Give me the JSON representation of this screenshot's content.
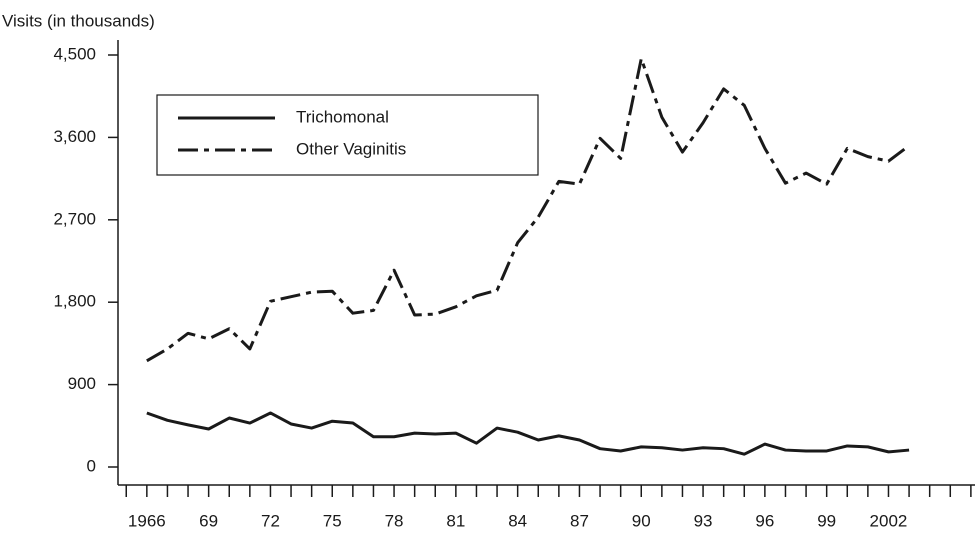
{
  "chart_data": {
    "type": "line",
    "y_label": "Visits (in thousands)",
    "x": [
      1966,
      1967,
      1968,
      1969,
      1970,
      1971,
      1972,
      1973,
      1974,
      1975,
      1976,
      1977,
      1978,
      1979,
      1980,
      1981,
      1982,
      1983,
      1984,
      1985,
      1986,
      1987,
      1988,
      1989,
      1990,
      1991,
      1992,
      1993,
      1994,
      1995,
      1996,
      1997,
      1998,
      1999,
      2000,
      2001,
      2002,
      2003
    ],
    "series": [
      {
        "name": "Trichomonal",
        "color": "#1a1a1a",
        "style": "solid",
        "values": [
          590,
          510,
          460,
          415,
          535,
          480,
          590,
          470,
          425,
          500,
          480,
          330,
          330,
          370,
          360,
          370,
          260,
          425,
          380,
          295,
          340,
          295,
          200,
          175,
          220,
          210,
          185,
          210,
          200,
          140,
          250,
          185,
          175,
          175,
          230,
          220,
          165,
          185
        ]
      },
      {
        "name": "Other Vaginitis",
        "color": "#1a1a1a",
        "style": "dashdot",
        "values": [
          1160,
          1290,
          1460,
          1400,
          1510,
          1290,
          1810,
          1860,
          1910,
          1920,
          1680,
          1710,
          2150,
          1660,
          1670,
          1750,
          1870,
          1930,
          2450,
          2730,
          3120,
          3090,
          3590,
          3370,
          4460,
          3820,
          3440,
          3760,
          4130,
          3950,
          3480,
          3100,
          3210,
          3090,
          3480,
          3390,
          3340,
          3510
        ]
      }
    ],
    "xlim": [
      1964.6,
      2006.2
    ],
    "xticks": [
      1966,
      {
        "value": 1969,
        "label": "69"
      },
      {
        "value": 1972,
        "label": "72"
      },
      {
        "value": 1975,
        "label": "75"
      },
      {
        "value": 1978,
        "label": "78"
      },
      {
        "value": 1981,
        "label": "81"
      },
      {
        "value": 1984,
        "label": "84"
      },
      {
        "value": 1987,
        "label": "87"
      },
      {
        "value": 1990,
        "label": "90"
      },
      {
        "value": 1993,
        "label": "93"
      },
      {
        "value": 1996,
        "label": "96"
      },
      {
        "value": 1999,
        "label": "99"
      },
      2002
    ],
    "xminorticks": [
      1965,
      1967,
      1968,
      1970,
      1971,
      1973,
      1974,
      1976,
      1977,
      1979,
      1980,
      1982,
      1983,
      1985,
      1986,
      1988,
      1989,
      1991,
      1992,
      1994,
      1995,
      1997,
      1998,
      2000,
      2001,
      2003,
      2004,
      2005,
      2006
    ],
    "ylim": [
      0,
      4500
    ],
    "yticks": [
      0,
      {
        "value": 900,
        "label": "900"
      },
      {
        "value": 1800,
        "label": "1,800"
      },
      {
        "value": 2700,
        "label": "2,700"
      },
      {
        "value": 3600,
        "label": "3,600"
      },
      {
        "value": 4500,
        "label": "4,500"
      }
    ],
    "grid": false,
    "legend": "upper left"
  }
}
